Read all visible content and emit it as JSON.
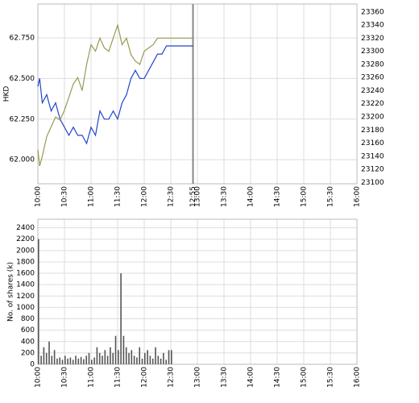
{
  "chart_data": [
    {
      "type": "line",
      "ylabel": "HKD",
      "x": [
        "10:00",
        "10:02",
        "10:05",
        "10:10",
        "10:15",
        "10:20",
        "10:25",
        "10:30",
        "10:35",
        "10:40",
        "10:45",
        "10:50",
        "10:55",
        "11:00",
        "11:05",
        "11:10",
        "11:15",
        "11:20",
        "11:25",
        "11:30",
        "11:35",
        "11:40",
        "11:45",
        "11:50",
        "11:55",
        "12:00",
        "12:05",
        "12:10",
        "12:15",
        "12:20",
        "12:25",
        "12:30",
        "12:55"
      ],
      "series": [
        {
          "color": "#2244cc",
          "values": [
            62.45,
            62.5,
            62.35,
            62.4,
            62.3,
            62.35,
            62.25,
            62.2,
            62.15,
            62.2,
            62.15,
            62.15,
            62.1,
            62.2,
            62.15,
            62.3,
            62.25,
            62.25,
            62.3,
            62.25,
            62.35,
            62.4,
            62.5,
            62.55,
            62.5,
            62.5,
            62.55,
            62.6,
            62.65,
            62.65,
            62.7,
            62.7,
            62.7
          ]
        },
        {
          "color": "#999955",
          "axis": "y2",
          "values": [
            23150,
            23125,
            23140,
            23170,
            23185,
            23200,
            23195,
            23210,
            23230,
            23250,
            23260,
            23240,
            23280,
            23310,
            23300,
            23320,
            23305,
            23300,
            23320,
            23340,
            23310,
            23320,
            23295,
            23285,
            23280,
            23300,
            23305,
            23310,
            23320,
            23320,
            23320,
            23320,
            23320
          ]
        }
      ],
      "xlim": [
        "10:00",
        "16:00"
      ],
      "xticks": [
        "10:00",
        "10:30",
        "11:00",
        "11:30",
        "12:00",
        "12:30",
        "12:55",
        "13:00",
        "13:30",
        "14:00",
        "14:30",
        "15:00",
        "15:30",
        "16:00"
      ],
      "ylim": [
        61.852,
        62.958
      ],
      "yticks": [
        {
          "value": 62,
          "label": "62.000"
        },
        {
          "value": 62.25,
          "label": "62.250"
        },
        {
          "value": 62.5,
          "label": "62.500"
        },
        {
          "value": 62.75,
          "label": "62.750"
        }
      ],
      "y2lim": [
        23098,
        23372
      ],
      "y2ticks": [
        23100,
        23120,
        23140,
        23160,
        23180,
        23200,
        23220,
        23240,
        23260,
        23280,
        23300,
        23320,
        23340,
        23360
      ],
      "grid": true
    },
    {
      "type": "bar",
      "ylabel": "No. of shares (k)",
      "color": "#555555",
      "x": [
        "10:00",
        "10:03",
        "10:06",
        "10:09",
        "10:12",
        "10:15",
        "10:18",
        "10:21",
        "10:24",
        "10:27",
        "10:30",
        "10:33",
        "10:36",
        "10:39",
        "10:42",
        "10:45",
        "10:48",
        "10:51",
        "10:54",
        "10:57",
        "11:00",
        "11:03",
        "11:06",
        "11:09",
        "11:12",
        "11:15",
        "11:18",
        "11:21",
        "11:24",
        "11:27",
        "11:30",
        "11:33",
        "11:36",
        "11:39",
        "11:42",
        "11:45",
        "11:48",
        "11:51",
        "11:54",
        "11:57",
        "12:00",
        "12:03",
        "12:06",
        "12:09",
        "12:12",
        "12:15",
        "12:18",
        "12:21",
        "12:24",
        "12:27",
        "12:30"
      ],
      "values": [
        2200,
        150,
        300,
        200,
        400,
        150,
        250,
        100,
        120,
        80,
        150,
        100,
        120,
        80,
        150,
        100,
        130,
        90,
        150,
        200,
        80,
        120,
        300,
        200,
        150,
        250,
        150,
        300,
        200,
        500,
        250,
        1600,
        500,
        300,
        200,
        250,
        150,
        120,
        300,
        100,
        200,
        250,
        150,
        100,
        300,
        150,
        100,
        200,
        80,
        250,
        250
      ],
      "xlim": [
        "10:00",
        "16:00"
      ],
      "xticks": [
        "10:00",
        "10:30",
        "11:00",
        "11:30",
        "12:00",
        "12:30",
        "13:00",
        "13:30",
        "14:00",
        "14:30",
        "15:00",
        "15:30",
        "16:00"
      ],
      "ylim": [
        0,
        2550
      ],
      "yticks": [
        0,
        200,
        400,
        600,
        800,
        1000,
        1200,
        1400,
        1600,
        1800,
        2000,
        2200,
        2400
      ],
      "grid": true
    }
  ]
}
